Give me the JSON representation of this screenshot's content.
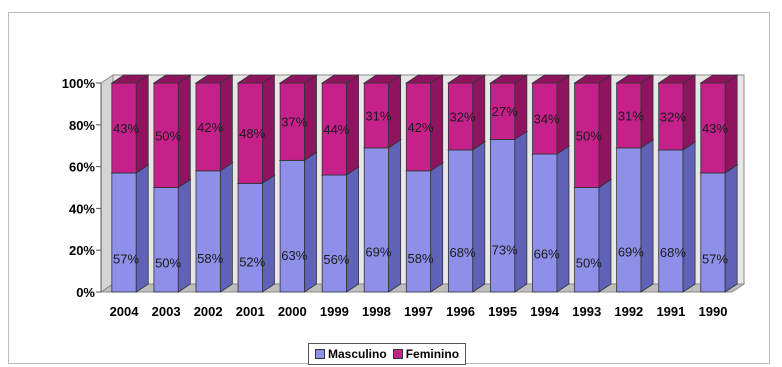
{
  "colors": {
    "masculino": "#8d8fe8",
    "masculino_dark": "#6062b8",
    "feminino": "#c6218a",
    "feminino_dark": "#8e1460",
    "wall": "#e7e7e7",
    "floor": "#bdbdbd"
  },
  "chart_data": {
    "type": "bar",
    "stacked": true,
    "percent_stacked": true,
    "three_d": true,
    "categories": [
      "2004",
      "2003",
      "2002",
      "2001",
      "2000",
      "1999",
      "1998",
      "1997",
      "1996",
      "1995",
      "1994",
      "1993",
      "1992",
      "1991",
      "1990"
    ],
    "series": [
      {
        "name": "Masculino",
        "values": [
          57,
          50,
          58,
          52,
          63,
          56,
          69,
          58,
          68,
          73,
          66,
          50,
          69,
          68,
          57
        ],
        "labels": [
          "57%",
          "50%",
          "58%",
          "52%",
          "63%",
          "56%",
          "69%",
          "58%",
          "68%",
          "73%",
          "66%",
          "50%",
          "69%",
          "68%",
          "57%"
        ]
      },
      {
        "name": "Feminino",
        "values": [
          43,
          50,
          42,
          48,
          37,
          44,
          31,
          42,
          32,
          27,
          34,
          50,
          31,
          32,
          43
        ],
        "labels": [
          "43%",
          "50%",
          "42%",
          "48%",
          "37%",
          "44%",
          "31%",
          "42%",
          "32%",
          "27%",
          "34%",
          "50%",
          "31%",
          "32%",
          "43%"
        ]
      }
    ],
    "yticks": [
      "0%",
      "20%",
      "40%",
      "60%",
      "80%",
      "100%"
    ],
    "ylim": [
      0,
      100
    ],
    "legend_position": "bottom",
    "grid": false
  },
  "legend": {
    "items": [
      {
        "name": "Masculino"
      },
      {
        "name": "Feminino"
      }
    ]
  }
}
